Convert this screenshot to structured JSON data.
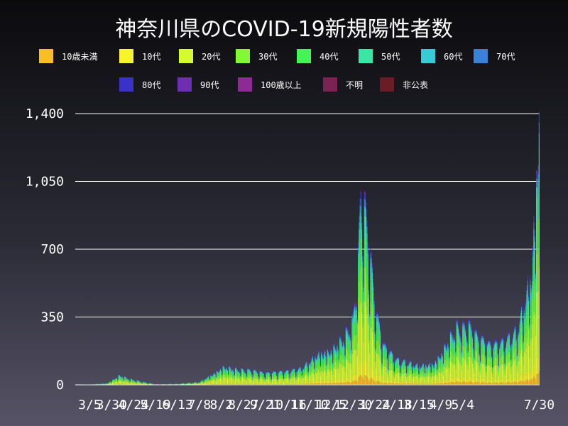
{
  "chart_data": {
    "type": "bar",
    "stacked": true,
    "title": "神奈川県のCOVID-19新規陽性者数",
    "ylim": [
      0,
      1400
    ],
    "yticks": [
      0,
      350,
      700,
      1050,
      1400
    ],
    "ytick_labels": [
      "0",
      "350",
      "700",
      "1,050",
      "1,400"
    ],
    "xtick_labels": [
      "3/5",
      "3/30",
      "4/24",
      "5/19",
      "6/13",
      "7/8",
      "8/2",
      "8/27",
      "9/21",
      "10/16",
      "11/10",
      "12/5",
      "12/30",
      "1/24",
      "2/18",
      "3/15",
      "4/9",
      "5/4",
      "7/30"
    ],
    "grid": true,
    "legend_position": "top",
    "series": [
      {
        "name": "10歳未満",
        "color": "#f8be25",
        "share": 0.05
      },
      {
        "name": "10代",
        "color": "#f6f52b",
        "share": 0.08
      },
      {
        "name": "20代",
        "color": "#d5fb30",
        "share": 0.3
      },
      {
        "name": "30代",
        "color": "#83f834",
        "share": 0.18
      },
      {
        "name": "40代",
        "color": "#44f455",
        "share": 0.15
      },
      {
        "name": "50代",
        "color": "#39e6a6",
        "share": 0.11
      },
      {
        "name": "60代",
        "color": "#37cbd7",
        "share": 0.05
      },
      {
        "name": "70代",
        "color": "#3a81da",
        "share": 0.04
      },
      {
        "name": "80代",
        "color": "#3a32c8",
        "share": 0.025
      },
      {
        "name": "90代",
        "color": "#6f2eb2",
        "share": 0.01
      },
      {
        "name": "100歳以上",
        "color": "#8e2a95",
        "share": 0.001
      },
      {
        "name": "不明",
        "color": "#7b2354",
        "share": 0.002
      },
      {
        "name": "非公表",
        "color": "#6b1d25",
        "share": 0.002
      }
    ],
    "daily_total_keypoints": [
      [
        "2020-02-18",
        0
      ],
      [
        "2020-03-05",
        2
      ],
      [
        "2020-03-25",
        8
      ],
      [
        "2020-04-08",
        50
      ],
      [
        "2020-04-20",
        30
      ],
      [
        "2020-05-10",
        10
      ],
      [
        "2020-05-20",
        3
      ],
      [
        "2020-06-13",
        5
      ],
      [
        "2020-07-08",
        15
      ],
      [
        "2020-07-25",
        60
      ],
      [
        "2020-08-05",
        95
      ],
      [
        "2020-08-20",
        80
      ],
      [
        "2020-09-05",
        75
      ],
      [
        "2020-09-21",
        60
      ],
      [
        "2020-10-16",
        70
      ],
      [
        "2020-11-01",
        85
      ],
      [
        "2020-11-20",
        160
      ],
      [
        "2020-12-05",
        180
      ],
      [
        "2020-12-20",
        250
      ],
      [
        "2020-12-30",
        330
      ],
      [
        "2021-01-05",
        650
      ],
      [
        "2021-01-08",
        980
      ],
      [
        "2021-01-12",
        900
      ],
      [
        "2021-01-18",
        700
      ],
      [
        "2021-01-24",
        400
      ],
      [
        "2021-02-03",
        200
      ],
      [
        "2021-02-18",
        130
      ],
      [
        "2021-03-15",
        100
      ],
      [
        "2021-04-01",
        110
      ],
      [
        "2021-04-09",
        160
      ],
      [
        "2021-04-20",
        250
      ],
      [
        "2021-04-27",
        300
      ],
      [
        "2021-05-04",
        290
      ],
      [
        "2021-05-10",
        310
      ],
      [
        "2021-05-20",
        250
      ],
      [
        "2021-06-05",
        200
      ],
      [
        "2021-06-20",
        220
      ],
      [
        "2021-07-05",
        280
      ],
      [
        "2021-07-15",
        450
      ],
      [
        "2021-07-22",
        600
      ],
      [
        "2021-07-27",
        1050
      ],
      [
        "2021-07-30",
        1410
      ]
    ]
  }
}
